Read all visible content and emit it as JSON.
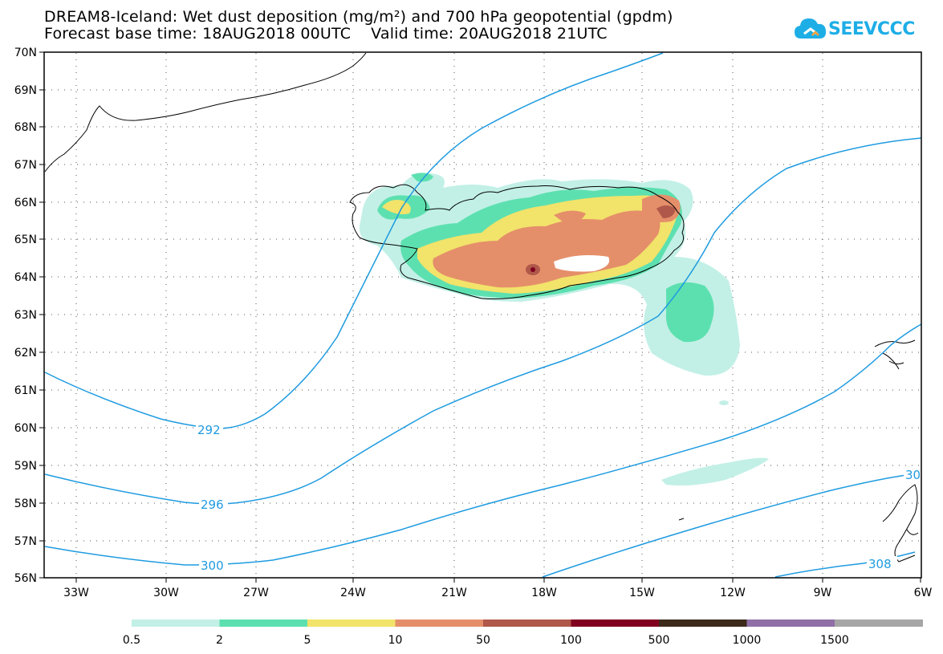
{
  "header": {
    "title_line1": "DREAM8-Iceland: Wet dust deposition (mg/m²) and 700 hPa geopotential (gpdm)",
    "title_line2": "Forecast base time: 18AUG2018 00UTC    Valid time: 20AUG2018 21UTC"
  },
  "logo": {
    "text": "SEEVCCC",
    "icon": "cloud-icon",
    "color": "#1eaee6"
  },
  "map": {
    "lat_labels": [
      "70N",
      "69N",
      "68N",
      "67N",
      "66N",
      "65N",
      "64N",
      "63N",
      "62N",
      "61N",
      "60N",
      "59N",
      "58N",
      "57N",
      "56N"
    ],
    "lon_labels": [
      "33W",
      "30W",
      "27W",
      "24W",
      "21W",
      "18W",
      "15W",
      "12W",
      "9W",
      "6W"
    ],
    "contour_labels": [
      {
        "id": "c292",
        "text": "292"
      },
      {
        "id": "c296",
        "text": "296"
      },
      {
        "id": "c300",
        "text": "300"
      },
      {
        "id": "c304",
        "text": "30"
      },
      {
        "id": "c308",
        "text": "308"
      }
    ],
    "contour_color": "#1e9be0",
    "grid": "dotted"
  },
  "legend": {
    "bins": [
      {
        "color": "#c2f0e6"
      },
      {
        "color": "#5de0b0"
      },
      {
        "color": "#f2e36a"
      },
      {
        "color": "#e58f6a"
      },
      {
        "color": "#b0584a"
      },
      {
        "color": "#800020"
      },
      {
        "color": "#3c2a1a"
      },
      {
        "color": "#8f6fa6"
      },
      {
        "color": "#a6a6a6"
      }
    ],
    "labels": [
      "0.5",
      "2",
      "5",
      "10",
      "50",
      "100",
      "500",
      "1000",
      "1500"
    ]
  }
}
